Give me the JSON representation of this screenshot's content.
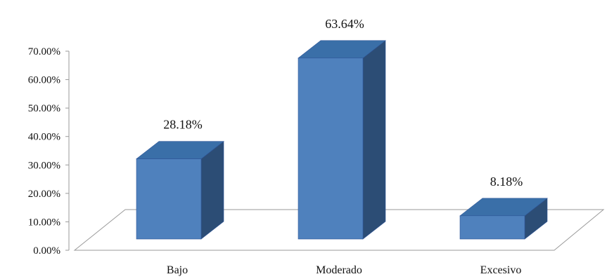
{
  "chart_data": {
    "type": "bar",
    "categories": [
      "Bajo",
      "Moderado",
      "Excesivo"
    ],
    "values": [
      28.18,
      63.64,
      8.18
    ],
    "data_labels": [
      "28.18%",
      "63.64%",
      "8.18%"
    ],
    "ylim": [
      0,
      70
    ],
    "yticks": [
      "0.00%",
      "10.00%",
      "20.00%",
      "30.00%",
      "40.00%",
      "50.00%",
      "60.00%",
      "70.00%"
    ],
    "grid": false,
    "legend": "none",
    "style": "3d-column",
    "colors": {
      "front": "#4f81bd",
      "top": "#3a6fa8",
      "side": "#2c4d75",
      "edge": "#2f5597"
    }
  }
}
